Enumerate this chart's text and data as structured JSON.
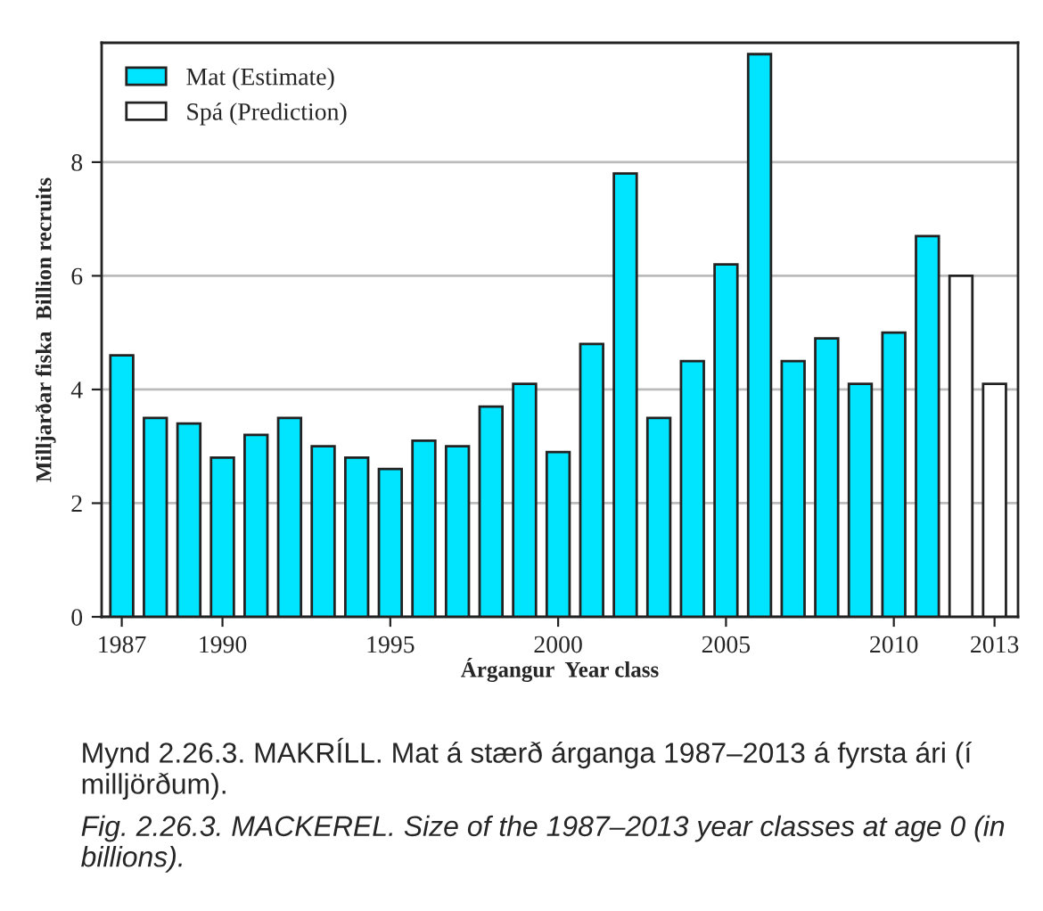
{
  "chart_data": {
    "type": "bar",
    "xlabel": "Árgangur  Year class",
    "ylabel": "Milljarðar fiska  Billion recruits",
    "series": [
      {
        "name": "Mat (Estimate)",
        "color": "#00e5ff",
        "x": [
          1987,
          1988,
          1989,
          1990,
          1991,
          1992,
          1993,
          1994,
          1995,
          1996,
          1997,
          1998,
          1999,
          2000,
          2001,
          2002,
          2003,
          2004,
          2005,
          2006,
          2007,
          2008,
          2009,
          2010,
          2011
        ],
        "values": [
          4.6,
          3.5,
          3.4,
          2.8,
          3.2,
          3.5,
          3.0,
          2.8,
          2.6,
          3.1,
          3.0,
          3.7,
          4.1,
          2.9,
          4.8,
          7.8,
          3.5,
          4.5,
          6.2,
          9.9,
          4.5,
          4.9,
          4.1,
          5.0,
          6.7
        ]
      },
      {
        "name": "Spá (Prediction)",
        "color": "#ffffff",
        "x": [
          2012,
          2013
        ],
        "values": [
          6.0,
          4.1
        ]
      }
    ],
    "xlim": [
      1986.4,
      2013.7
    ],
    "xticks": [
      1987,
      1990,
      1995,
      2000,
      2005,
      2010,
      2013
    ],
    "ylim": [
      0,
      10.1
    ],
    "yticks": [
      0,
      2,
      4,
      6,
      8
    ],
    "grid": "y",
    "legend": "top left",
    "annotations": [
      "Mynd 2.26.3. MAKRÍLL. Mat á stærð árganga 1987–2013 á fyrsta ári (í milljörðum).",
      "Fig. 2.26.3. MACKEREL. Size of the 1987–2013 year classes at age 0 (in billions)."
    ]
  }
}
